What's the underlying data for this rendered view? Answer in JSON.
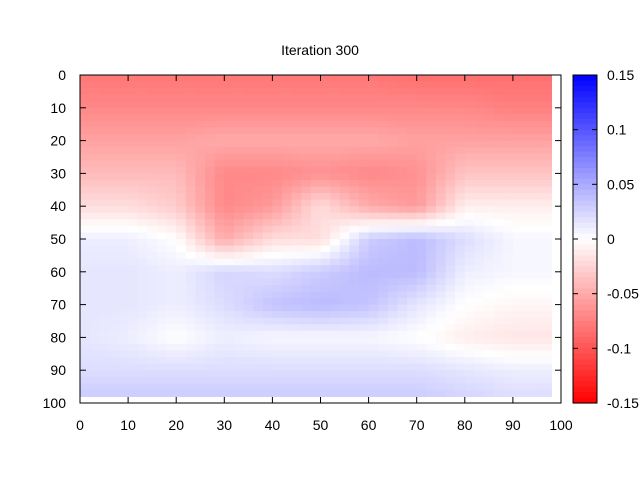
{
  "chart_data": {
    "type": "heatmap",
    "title": "Iteration 300",
    "xlabel": "",
    "ylabel": "",
    "xlim": [
      0,
      100
    ],
    "ylim": [
      100,
      0
    ],
    "xticks": [
      "0",
      "10",
      "20",
      "30",
      "40",
      "50",
      "60",
      "70",
      "80",
      "90",
      "100"
    ],
    "yticks": [
      "0",
      "10",
      "20",
      "30",
      "40",
      "50",
      "60",
      "70",
      "80",
      "90",
      "100"
    ],
    "colorbar": {
      "range": [
        -0.15,
        0.15
      ],
      "ticks": [
        "0.15",
        "0.1",
        "0.05",
        "0",
        "-0.05",
        "-0.1",
        "-0.15"
      ],
      "low_color": "#ff0000",
      "mid_color": "#ffffff",
      "high_color": "#0000ff"
    },
    "grid_x": [
      0,
      10,
      20,
      30,
      40,
      50,
      60,
      70,
      80,
      90,
      98
    ],
    "grid_y": [
      0,
      10,
      20,
      30,
      40,
      50,
      60,
      70,
      80,
      90,
      98
    ],
    "values": [
      [
        -0.08,
        -0.08,
        -0.08,
        -0.08,
        -0.08,
        -0.08,
        -0.08,
        -0.085,
        -0.085,
        -0.085,
        -0.085
      ],
      [
        -0.07,
        -0.07,
        -0.07,
        -0.07,
        -0.07,
        -0.07,
        -0.07,
        -0.07,
        -0.07,
        -0.075,
        -0.075
      ],
      [
        -0.055,
        -0.055,
        -0.055,
        -0.05,
        -0.05,
        -0.05,
        -0.05,
        -0.055,
        -0.055,
        -0.055,
        -0.055
      ],
      [
        -0.04,
        -0.04,
        -0.04,
        -0.07,
        -0.07,
        -0.065,
        -0.07,
        -0.065,
        -0.035,
        -0.035,
        -0.035
      ],
      [
        -0.02,
        -0.02,
        -0.03,
        -0.07,
        -0.06,
        -0.02,
        -0.05,
        -0.06,
        -0.01,
        -0.01,
        -0.01
      ],
      [
        0.01,
        0.01,
        0.0,
        -0.05,
        -0.02,
        -0.02,
        0.03,
        0.04,
        0.02,
        0.005,
        0.005
      ],
      [
        0.015,
        0.015,
        0.01,
        0.025,
        0.02,
        0.03,
        0.04,
        0.04,
        0.01,
        0.005,
        0.005
      ],
      [
        0.015,
        0.015,
        0.01,
        0.02,
        0.035,
        0.04,
        0.035,
        0.015,
        0.0,
        -0.005,
        -0.005
      ],
      [
        0.015,
        0.01,
        0.0,
        0.01,
        0.005,
        0.005,
        0.005,
        0.0,
        -0.01,
        -0.015,
        -0.015
      ],
      [
        0.02,
        0.02,
        0.02,
        0.02,
        0.02,
        0.02,
        0.02,
        0.02,
        0.015,
        0.01,
        0.01
      ],
      [
        0.03,
        0.03,
        0.03,
        0.03,
        0.03,
        0.03,
        0.03,
        0.03,
        0.025,
        0.02,
        0.02
      ]
    ]
  }
}
